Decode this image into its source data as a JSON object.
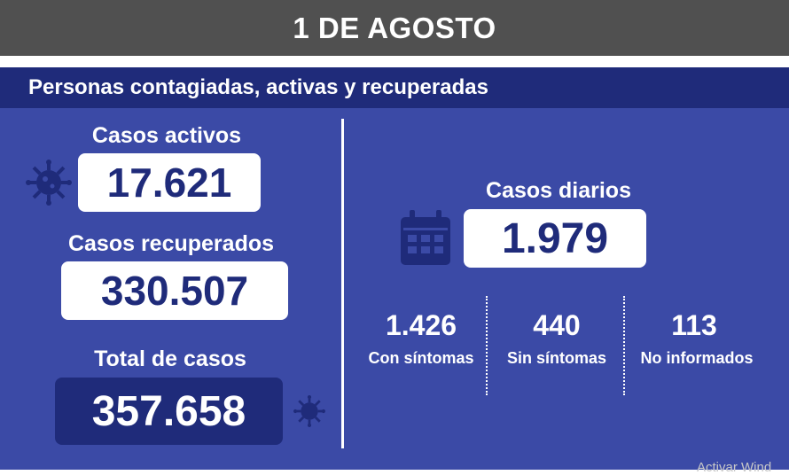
{
  "banner": {
    "title": "1 DE AGOSTO"
  },
  "panel": {
    "title": "Personas contagiadas, activas y recuperadas"
  },
  "left": {
    "activos_label": "Casos activos",
    "activos_value": "17.621",
    "recuperados_label": "Casos recuperados",
    "recuperados_value": "330.507",
    "total_label": "Total de casos",
    "total_value": "357.658"
  },
  "right": {
    "diarios_label": "Casos diarios",
    "diarios_value": "1.979",
    "breakdown": [
      {
        "value": "1.426",
        "label": "Con síntomas"
      },
      {
        "value": "440",
        "label": "Sin síntomas"
      },
      {
        "value": "113",
        "label": "No informados"
      }
    ]
  },
  "icons": {
    "virus": "virus-icon",
    "calendar": "calendar-icon"
  },
  "colors": {
    "banner_bg": "#505050",
    "panel_bg": "#3b4aa6",
    "header_bg": "#1f2b7a",
    "accent_dark": "#1f2b7a"
  },
  "watermark": "Activar Wind"
}
